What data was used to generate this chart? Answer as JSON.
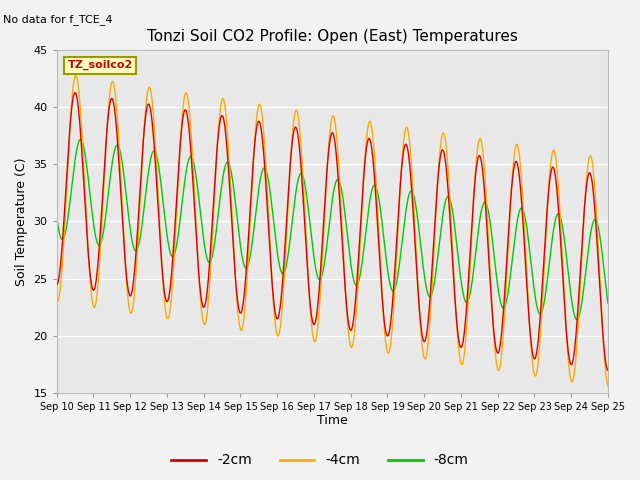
{
  "title": "Tonzi Soil CO2 Profile: Open (East) Temperatures",
  "subtitle": "No data for f_TCE_4",
  "ylabel": "Soil Temperature (C)",
  "xlabel": "Time",
  "ylim": [
    15,
    45
  ],
  "xlim_days": 15,
  "series_labels": [
    "-2cm",
    "-4cm",
    "-8cm"
  ],
  "series_colors": [
    "#dd0000",
    "#ffaa00",
    "#00cc00"
  ],
  "legend_label": "TZ_soilco2",
  "bg_color": "#e8e8e8",
  "tick_labels": [
    "Sep 10",
    "Sep 11",
    "Sep 12",
    "Sep 13",
    "Sep 14",
    "Sep 15",
    "Sep 16",
    "Sep 17",
    "Sep 18",
    "Sep 19",
    "Sep 20",
    "Sep 21",
    "Sep 22",
    "Sep 23",
    "Sep 24",
    "Sep 25"
  ],
  "yticks": [
    15,
    20,
    25,
    30,
    35,
    40,
    45
  ],
  "grid_color": "#ffffff",
  "figsize": [
    6.4,
    4.8
  ],
  "dpi": 100
}
